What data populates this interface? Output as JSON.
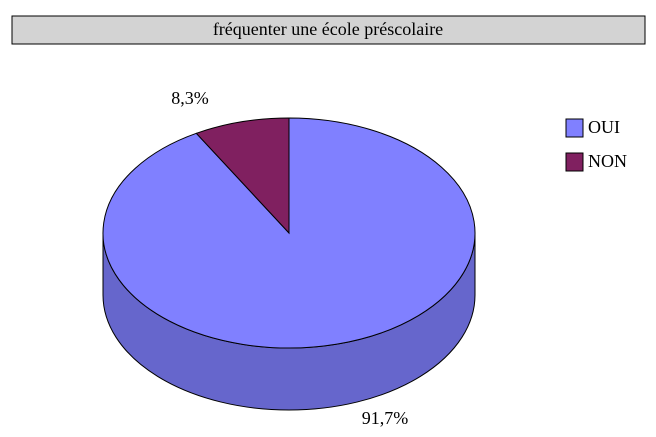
{
  "chart_data": {
    "type": "pie",
    "title": "fréquenter une école préscolaire",
    "categories": [
      "OUI",
      "NON"
    ],
    "values": [
      91.7,
      8.3
    ],
    "value_labels": [
      "91,7%",
      "8,3%"
    ],
    "colors": [
      "#8080ff",
      "#802060"
    ],
    "legend": "right"
  }
}
